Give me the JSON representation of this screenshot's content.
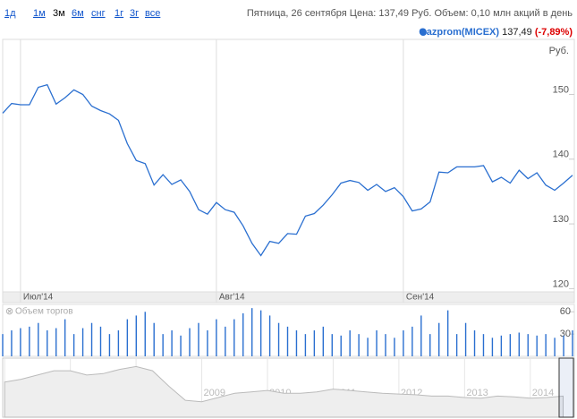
{
  "toolbar": {
    "ranges": [
      "1д",
      "1м",
      "3м",
      "6м",
      "снг",
      "1г",
      "3г",
      "все"
    ],
    "selected": "3м",
    "info": "Пятница, 26 сентября Цена: 137,49 Руб. Объем: 0,10 млн акций в день"
  },
  "legend": {
    "price": "137,49",
    "change": "(-7,89%)"
  },
  "chart_data": [
    {
      "type": "line",
      "unit_label": "Руб.",
      "series": [
        {
          "name": "Gazprom(MICEX)",
          "color": "#2a6fd0",
          "values": [
            147.1,
            148.6,
            148.4,
            148.4,
            151.1,
            151.5,
            148.5,
            149.5,
            150.7,
            150.0,
            148.2,
            147.5,
            147.0,
            146.0,
            142.4,
            139.8,
            139.3,
            136.0,
            137.6,
            136.1,
            136.8,
            135.0,
            132.2,
            131.5,
            133.3,
            132.2,
            131.8,
            129.7,
            127.0,
            125.1,
            127.3,
            127.0,
            128.5,
            128.4,
            131.2,
            131.6,
            132.9,
            134.5,
            136.3,
            136.7,
            136.4,
            135.2,
            136.1,
            135.0,
            135.6,
            134.2,
            132.0,
            132.3,
            133.4,
            138.0,
            137.9,
            138.8,
            138.8,
            138.8,
            139.0,
            136.5,
            137.2,
            136.3,
            138.3,
            137.0,
            137.9,
            136.0,
            135.2,
            136.3,
            137.5
          ]
        }
      ],
      "xticks": [
        {
          "value": 2,
          "label": "Июл'14"
        },
        {
          "value": 24,
          "label": "Авг'14"
        },
        {
          "value": 45,
          "label": "Сен'14"
        }
      ],
      "ylim": [
        119.5,
        158.5
      ],
      "yticks": [
        120,
        130,
        140,
        150
      ]
    },
    {
      "type": "bar",
      "title": "Объем торгов",
      "color": "#2a6fd0",
      "values": [
        30,
        35,
        38,
        40,
        45,
        35,
        38,
        50,
        30,
        38,
        45,
        40,
        30,
        35,
        50,
        55,
        60,
        45,
        30,
        35,
        28,
        38,
        45,
        35,
        50,
        40,
        50,
        58,
        65,
        62,
        55,
        45,
        40,
        35,
        30,
        35,
        40,
        30,
        28,
        35,
        30,
        25,
        35,
        30,
        25,
        35,
        40,
        55,
        30,
        45,
        62,
        30,
        45,
        35,
        30,
        25,
        28,
        30,
        32,
        30,
        28,
        30,
        25,
        28,
        35
      ],
      "ylim": [
        0,
        70
      ],
      "yticks": [
        30,
        60
      ]
    },
    {
      "type": "area",
      "color": "#bbbbbb",
      "x": [
        2006,
        2006.25,
        2006.5,
        2006.75,
        2007,
        2007.25,
        2007.5,
        2007.75,
        2008,
        2008.25,
        2008.5,
        2008.75,
        2009,
        2009.25,
        2009.5,
        2009.75,
        2010,
        2010.25,
        2010.5,
        2010.75,
        2011,
        2011.25,
        2011.5,
        2011.75,
        2012,
        2012.25,
        2012.5,
        2012.75,
        2013,
        2013.25,
        2013.5,
        2013.75,
        2014,
        2014.25,
        2014.5
      ],
      "values": [
        250,
        270,
        300,
        330,
        330,
        300,
        310,
        340,
        360,
        330,
        220,
        120,
        110,
        140,
        170,
        180,
        190,
        170,
        170,
        180,
        200,
        190,
        180,
        170,
        165,
        160,
        150,
        150,
        140,
        135,
        150,
        145,
        135,
        140,
        150
      ],
      "xlim": [
        2005.97,
        2014.67
      ],
      "ylim": [
        0,
        420
      ],
      "xticks": [
        2006,
        2007,
        2008,
        2009,
        2010,
        2011,
        2012,
        2013,
        2014
      ]
    }
  ]
}
